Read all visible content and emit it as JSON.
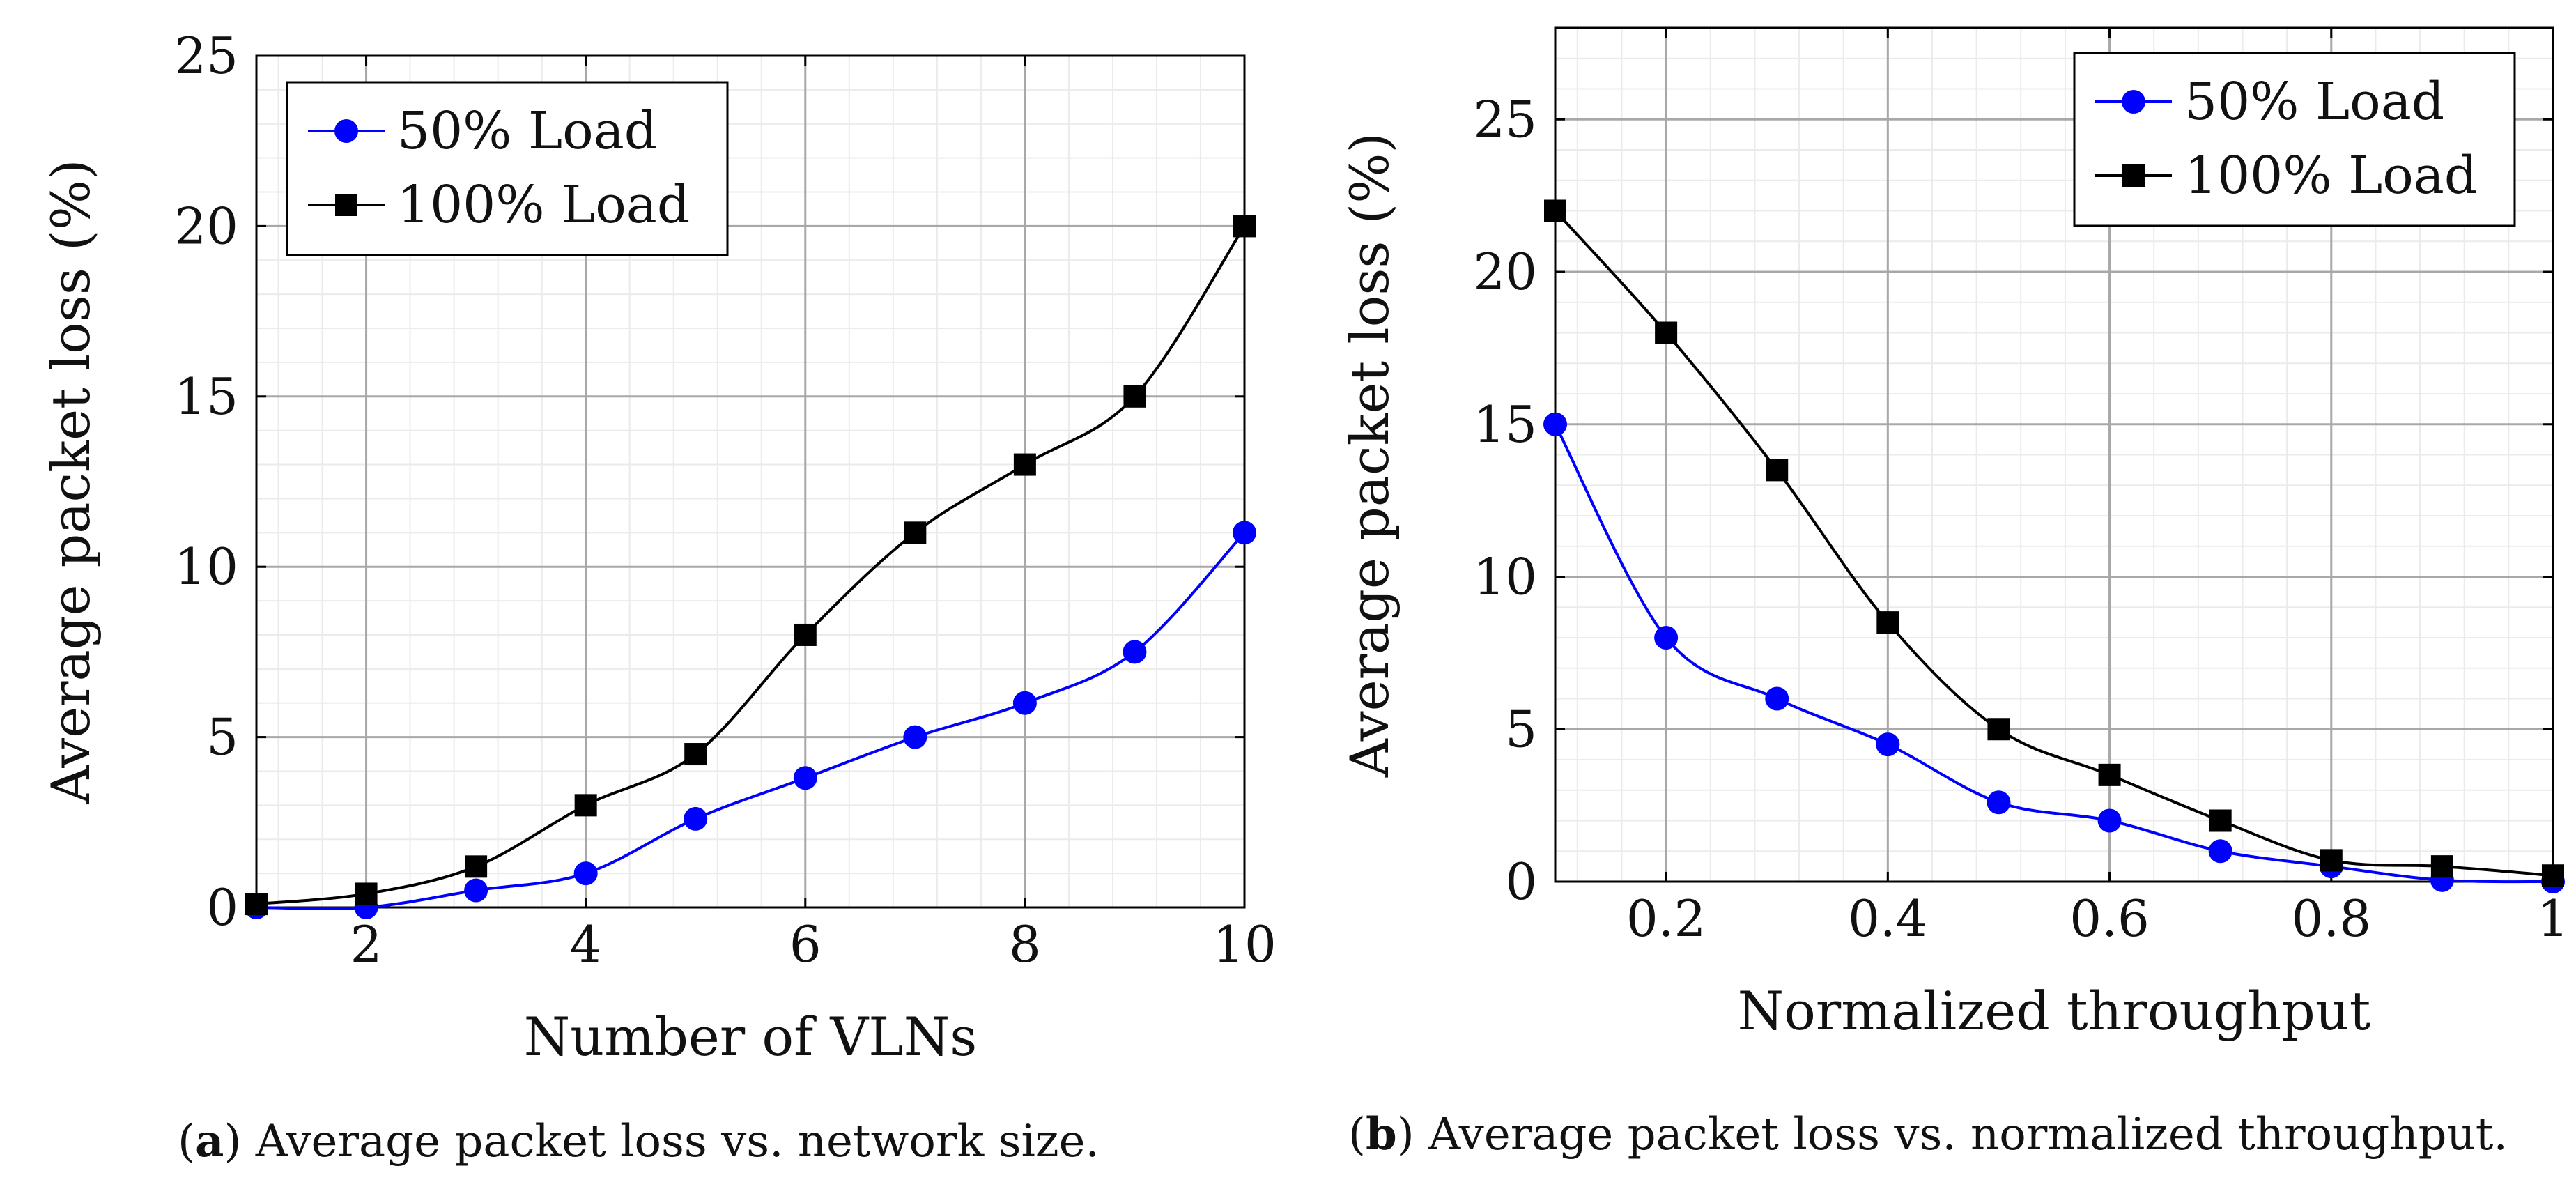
{
  "figure": {
    "captions": [
      {
        "label": "a",
        "text": "Average packet loss vs. network size."
      },
      {
        "label": "b",
        "text": "Average packet loss vs. normalized throughput."
      }
    ]
  },
  "chart_data": [
    {
      "type": "line",
      "xlabel": "Number of VLNs",
      "ylabel": "Average packet loss (%)",
      "xlim": [
        1,
        10
      ],
      "ylim": [
        0,
        25
      ],
      "xticks": [
        2,
        4,
        6,
        8,
        10
      ],
      "yticks": [
        0,
        5,
        10,
        15,
        20,
        25
      ],
      "grid": true,
      "legend_position": "top-left",
      "x": [
        1,
        2,
        3,
        4,
        5,
        6,
        7,
        8,
        9,
        10
      ],
      "series": [
        {
          "name": "50% Load",
          "color": "#0000ff",
          "marker": "circle",
          "values": [
            0,
            0,
            0.5,
            1,
            2.6,
            3.8,
            5,
            6,
            7.5,
            11
          ]
        },
        {
          "name": "100% Load",
          "color": "#000000",
          "marker": "square",
          "values": [
            0.1,
            0.4,
            1.2,
            3,
            4.5,
            8,
            11,
            13,
            15,
            20
          ]
        }
      ]
    },
    {
      "type": "line",
      "xlabel": "Normalized throughput",
      "ylabel": "Average packet loss (%)",
      "xlim": [
        0.1,
        1
      ],
      "ylim": [
        0,
        28
      ],
      "xticks": [
        0.2,
        0.4,
        0.6,
        0.8,
        1
      ],
      "xtick_labels": [
        "0.2",
        "0.4",
        "0.6",
        "0.8",
        "1"
      ],
      "yticks": [
        0,
        5,
        10,
        15,
        20,
        25
      ],
      "grid": true,
      "legend_position": "top-right",
      "x": [
        0.1,
        0.2,
        0.3,
        0.4,
        0.5,
        0.6,
        0.7,
        0.8,
        0.9,
        1.0
      ],
      "series": [
        {
          "name": "50% Load",
          "color": "#0000ff",
          "marker": "circle",
          "values": [
            15,
            8,
            6,
            4.5,
            2.6,
            2,
            1,
            0.5,
            0.05,
            0
          ]
        },
        {
          "name": "100% Load",
          "color": "#000000",
          "marker": "square",
          "values": [
            22,
            18,
            13.5,
            8.5,
            5,
            3.5,
            2,
            0.7,
            0.5,
            0.2
          ]
        }
      ]
    }
  ]
}
